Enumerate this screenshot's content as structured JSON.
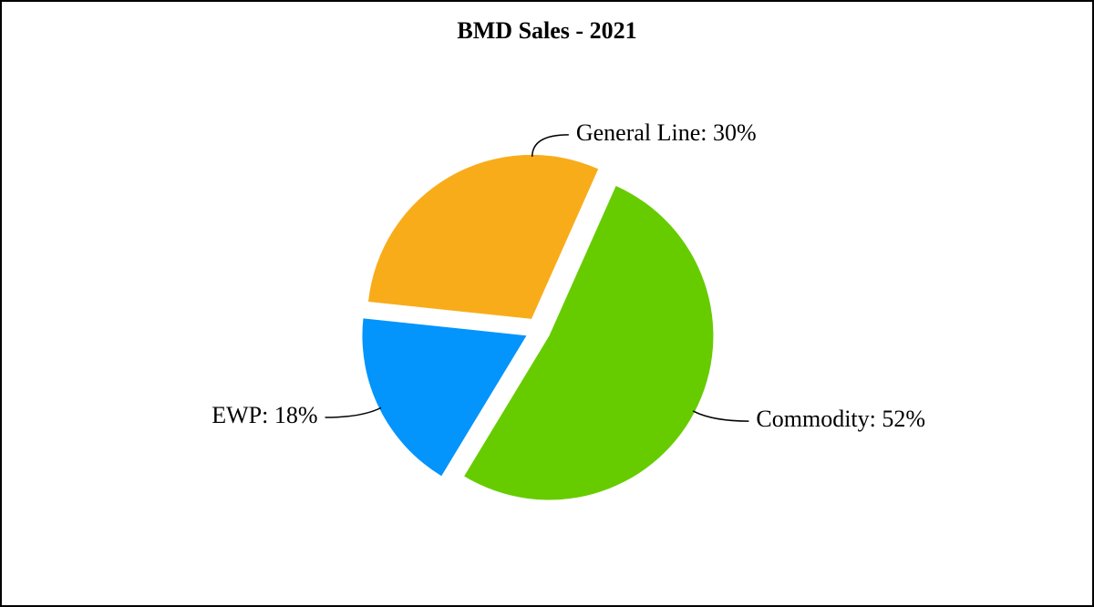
{
  "chart_data": {
    "type": "pie",
    "title": "BMD Sales - 2021",
    "values": [
      52,
      18,
      30
    ],
    "value_labels": [
      "Commodity: 52%",
      "EWP: 18%",
      "General Line: 30%"
    ],
    "colors": [
      "#66cc00",
      "#0394fc",
      "#f9ac1a"
    ]
  }
}
